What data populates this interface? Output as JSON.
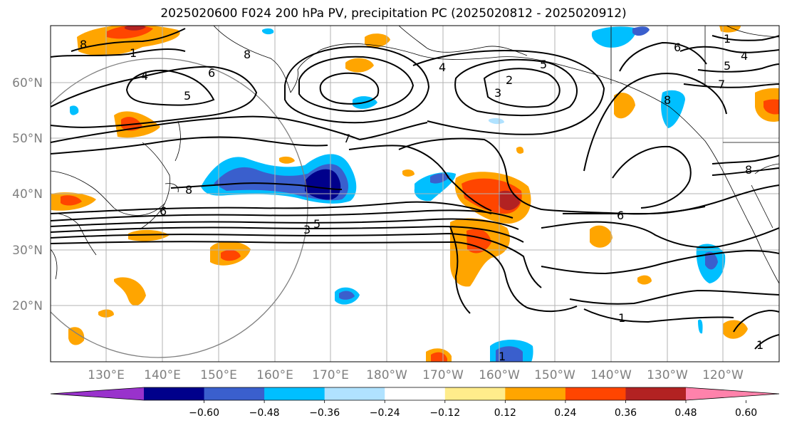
{
  "title": "2025020600 F024 200 hPa PV, precipitation PC (2025020812 - 2025020912)",
  "lat_labels": [
    "60°N",
    "50°N",
    "40°N",
    "30°N",
    "20°N"
  ],
  "lon_labels": [
    "130°E",
    "140°E",
    "150°E",
    "160°E",
    "170°E",
    "180°W",
    "170°W",
    "160°W",
    "150°W",
    "140°W",
    "130°W",
    "120°W"
  ],
  "contour_labels": [
    "8",
    "1",
    "4",
    "6",
    "5",
    "8",
    "4",
    "2",
    "3",
    "5",
    "7",
    "7",
    "8",
    "6",
    "5",
    "3",
    "6",
    "1",
    "1",
    "8",
    "6",
    "5",
    "4",
    "8",
    "1",
    "1"
  ],
  "colorbar": {
    "colors": [
      "#9932cc",
      "#00008b",
      "#3a5fcd",
      "#00bfff",
      "#b0e2ff",
      "#ffffff",
      "#ffec8b",
      "#ffa500",
      "#ff4500",
      "#b22222",
      "#ff82ab"
    ],
    "ticks": [
      "−0.60",
      "−0.48",
      "−0.36",
      "−0.24",
      "−0.12",
      "0.12",
      "0.24",
      "0.36",
      "0.48",
      "0.60"
    ]
  }
}
